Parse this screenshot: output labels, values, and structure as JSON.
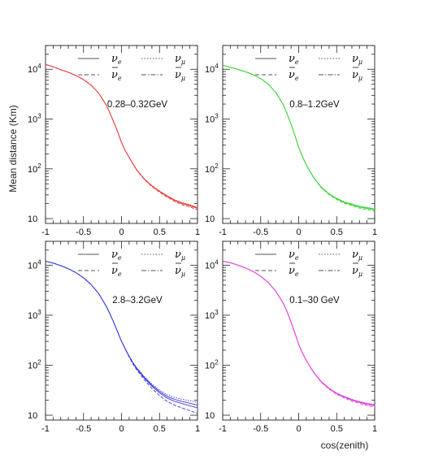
{
  "figure": {
    "ylabel": "Mean distance (Km)",
    "xlabel": "cos(zenith)"
  },
  "chart_data": [
    {
      "type": "line",
      "annotation": "0.28–0.32GeV",
      "color": "#e8403c",
      "spread": 0.012,
      "ylog": true,
      "xlim": [
        -1,
        1
      ],
      "ylim": [
        8,
        30000
      ],
      "xticks": [
        "-1",
        "-0.5",
        "0",
        "0.5",
        "1"
      ],
      "yticks": [
        {
          "v": 10,
          "label": "10"
        },
        {
          "v": 100,
          "label": "10",
          "exp": "2"
        },
        {
          "v": 1000,
          "label": "10",
          "exp": "3"
        },
        {
          "v": 10000,
          "label": "10",
          "exp": "4"
        }
      ],
      "legend": [
        {
          "sym": "ν",
          "sub": "e",
          "bar": false
        },
        {
          "sym": "ν",
          "sub": "μ",
          "bar": false
        },
        {
          "sym": "ν",
          "sub": "e",
          "bar": true
        },
        {
          "sym": "ν",
          "sub": "μ",
          "bar": true
        }
      ],
      "x": [
        -1,
        -0.9,
        -0.8,
        -0.7,
        -0.6,
        -0.5,
        -0.4,
        -0.3,
        -0.2,
        -0.15,
        -0.1,
        -0.05,
        0,
        0.05,
        0.1,
        0.15,
        0.2,
        0.3,
        0.4,
        0.5,
        0.6,
        0.7,
        0.8,
        0.9,
        1
      ],
      "y": [
        12500,
        11200,
        9800,
        8700,
        7500,
        6200,
        4800,
        3300,
        1900,
        1300,
        850,
        550,
        340,
        230,
        170,
        125,
        95,
        62,
        45,
        35,
        28,
        23,
        20,
        18,
        16
      ]
    },
    {
      "type": "line",
      "annotation": "0.8–1.2GeV",
      "color": "#3cd13c",
      "spread": 0.012,
      "ylog": true,
      "xlim": [
        -1,
        1
      ],
      "ylim": [
        8,
        30000
      ],
      "xticks": [
        "-1",
        "-0.5",
        "0",
        "0.5",
        "1"
      ],
      "yticks": [
        {
          "v": 10,
          "label": "10"
        },
        {
          "v": 100,
          "label": "10",
          "exp": "2"
        },
        {
          "v": 1000,
          "label": "10",
          "exp": "3"
        },
        {
          "v": 10000,
          "label": "10",
          "exp": "4"
        }
      ],
      "legend": [
        {
          "sym": "ν",
          "sub": "e",
          "bar": false
        },
        {
          "sym": "ν",
          "sub": "μ",
          "bar": false
        },
        {
          "sym": "ν",
          "sub": "e",
          "bar": true
        },
        {
          "sym": "ν",
          "sub": "μ",
          "bar": true
        }
      ],
      "x": [
        -1,
        -0.9,
        -0.8,
        -0.7,
        -0.6,
        -0.5,
        -0.4,
        -0.3,
        -0.2,
        -0.15,
        -0.1,
        -0.05,
        0,
        0.05,
        0.1,
        0.15,
        0.2,
        0.3,
        0.4,
        0.5,
        0.6,
        0.7,
        0.8,
        0.9,
        1
      ],
      "y": [
        12000,
        11000,
        9900,
        8900,
        7800,
        6500,
        5000,
        3400,
        1900,
        1250,
        780,
        470,
        270,
        175,
        120,
        88,
        66,
        42,
        31,
        25,
        21,
        19,
        17,
        16,
        15
      ]
    },
    {
      "type": "line",
      "annotation": "2.8–3.2GeV",
      "color": "#3838e0",
      "spread": 0.05,
      "ylog": true,
      "xlim": [
        -1,
        1
      ],
      "ylim": [
        8,
        30000
      ],
      "xticks": [
        "-1",
        "-0.5",
        "0",
        "0.5",
        "1"
      ],
      "yticks": [
        {
          "v": 10,
          "label": "10"
        },
        {
          "v": 100,
          "label": "10",
          "exp": "2"
        },
        {
          "v": 1000,
          "label": "10",
          "exp": "3"
        },
        {
          "v": 10000,
          "label": "10",
          "exp": "4"
        }
      ],
      "legend": [
        {
          "sym": "ν",
          "sub": "e",
          "bar": false
        },
        {
          "sym": "ν",
          "sub": "μ",
          "bar": false
        },
        {
          "sym": "ν",
          "sub": "e",
          "bar": true
        },
        {
          "sym": "ν",
          "sub": "μ",
          "bar": true
        }
      ],
      "x": [
        -1,
        -0.9,
        -0.8,
        -0.7,
        -0.6,
        -0.5,
        -0.4,
        -0.3,
        -0.2,
        -0.15,
        -0.1,
        -0.05,
        0,
        0.05,
        0.1,
        0.15,
        0.2,
        0.3,
        0.4,
        0.5,
        0.6,
        0.7,
        0.8,
        0.9,
        1
      ],
      "y": [
        12000,
        11000,
        9800,
        8500,
        7100,
        5600,
        4100,
        2700,
        1500,
        1050,
        700,
        460,
        300,
        210,
        150,
        110,
        85,
        55,
        38,
        28,
        22,
        19,
        17,
        15.5,
        14
      ]
    },
    {
      "type": "line",
      "annotation": "0.1–30 GeV",
      "color": "#e03ce0",
      "spread": 0.012,
      "ylog": true,
      "xlim": [
        -1,
        1
      ],
      "ylim": [
        8,
        30000
      ],
      "xticks": [
        "-1",
        "-0.5",
        "0",
        "0.5",
        "1"
      ],
      "yticks": [
        {
          "v": 10,
          "label": "10"
        },
        {
          "v": 100,
          "label": "10",
          "exp": "2"
        },
        {
          "v": 1000,
          "label": "10",
          "exp": "3"
        },
        {
          "v": 10000,
          "label": "10",
          "exp": "4"
        }
      ],
      "legend": [
        {
          "sym": "ν",
          "sub": "e",
          "bar": false
        },
        {
          "sym": "ν",
          "sub": "μ",
          "bar": false
        },
        {
          "sym": "ν",
          "sub": "e",
          "bar": true
        },
        {
          "sym": "ν",
          "sub": "μ",
          "bar": true
        }
      ],
      "x": [
        -1,
        -0.9,
        -0.8,
        -0.7,
        -0.6,
        -0.5,
        -0.4,
        -0.3,
        -0.2,
        -0.15,
        -0.1,
        -0.05,
        0,
        0.05,
        0.1,
        0.15,
        0.2,
        0.3,
        0.4,
        0.5,
        0.6,
        0.7,
        0.8,
        0.9,
        1
      ],
      "y": [
        12000,
        11200,
        10000,
        8800,
        7500,
        6000,
        4500,
        3000,
        1700,
        1150,
        720,
        440,
        260,
        175,
        125,
        93,
        71,
        46,
        34,
        27,
        23,
        20,
        18,
        16.5,
        15.5
      ]
    }
  ]
}
